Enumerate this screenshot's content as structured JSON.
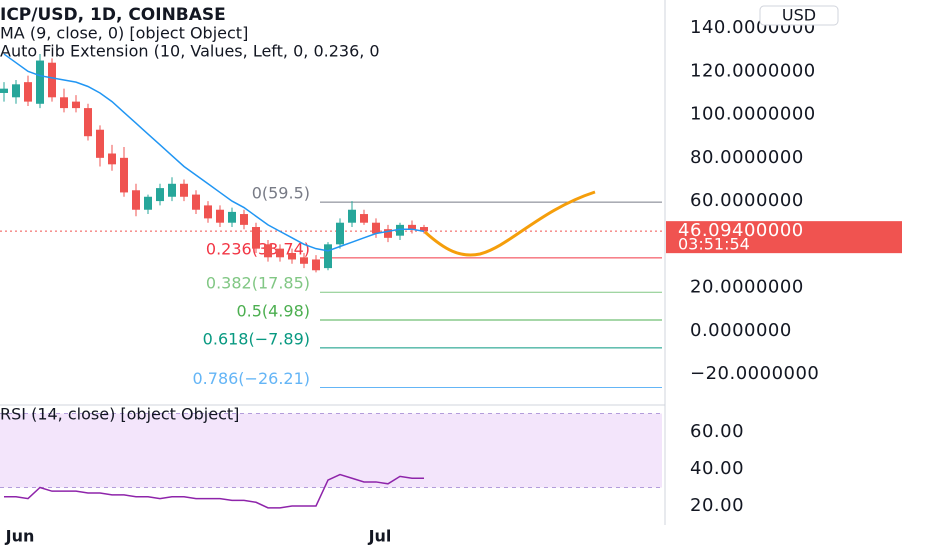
{
  "chart_data": [
    {
      "type": "candlestick",
      "title": "ICP/USD, 1D, COINBASE",
      "currency": "USD",
      "categories": [
        null,
        "Jun",
        null,
        null,
        null,
        null,
        null,
        null,
        null,
        null,
        null,
        null,
        null,
        null,
        null,
        null,
        null,
        null,
        null,
        null,
        null,
        null,
        null,
        null,
        null,
        null,
        null,
        null,
        null,
        null,
        null,
        "Jul",
        null,
        null,
        null,
        null
      ],
      "open": [
        110,
        108,
        115,
        105,
        124,
        108,
        106,
        103,
        93,
        82,
        80,
        65,
        56,
        60,
        62,
        68,
        63,
        58,
        56,
        50,
        54,
        48,
        40,
        38,
        36,
        34,
        33,
        29,
        40,
        50,
        54,
        50,
        47,
        44,
        49,
        48
      ],
      "high": [
        115,
        116,
        118,
        128,
        126,
        112,
        109,
        105,
        95,
        86,
        85,
        68,
        63,
        68,
        71,
        70,
        65,
        60,
        58,
        57,
        56,
        50,
        42,
        40,
        38,
        36,
        35,
        41,
        52,
        60,
        56,
        52,
        49,
        50,
        51,
        49
      ],
      "low": [
        106,
        105,
        104,
        103,
        106,
        101,
        101,
        88,
        76,
        74,
        62,
        53,
        54,
        58,
        60,
        60,
        54,
        50,
        48,
        48,
        47,
        36,
        32,
        32,
        31,
        29,
        27,
        28,
        38,
        48,
        49,
        43,
        41,
        42,
        45,
        45
      ],
      "close": [
        112,
        114,
        106,
        125,
        108,
        103,
        103,
        90,
        80,
        77,
        64,
        56,
        62,
        66,
        68,
        62,
        56,
        52,
        50,
        55,
        49,
        38,
        34,
        34,
        33,
        31,
        28,
        40,
        50,
        56,
        50,
        45,
        43,
        49,
        47,
        46
      ],
      "up_color": "#26a69a",
      "down_color": "#ef5350",
      "series": [
        {
          "name": "MA (9, close, 0) [object Object]",
          "color": "#2196f3",
          "values": [
            128,
            124,
            120,
            118,
            117,
            116,
            115,
            113,
            110,
            106,
            101,
            96,
            91,
            86,
            81,
            76,
            72,
            68,
            64,
            60,
            57,
            53,
            49,
            46,
            43,
            40,
            38,
            37,
            39,
            41,
            43,
            45,
            46,
            47,
            47,
            46
          ]
        }
      ],
      "ylim": [
        -32,
        153
      ],
      "yticks": [
        {
          "value": 140,
          "label": "140.0000000"
        },
        {
          "value": 120,
          "label": "120.0000000"
        },
        {
          "value": 100,
          "label": "100.0000000"
        },
        {
          "value": 80,
          "label": "80.0000000"
        },
        {
          "value": 60,
          "label": "60.0000000"
        },
        {
          "value": 20,
          "label": "20.0000000"
        },
        {
          "value": 0,
          "label": "0.0000000"
        },
        {
          "value": -20,
          "label": "−20.0000000"
        }
      ],
      "last_price": {
        "value": 46.094,
        "label": "46.09400000",
        "countdown": "03:51:54",
        "color": "#f05350"
      },
      "fib": {
        "title": "Auto Fib Extension (10, Values, Left, 0, 0.236, 0",
        "levels": [
          {
            "label": "0(59.5)",
            "value": 59.5,
            "color": "#787b86"
          },
          {
            "label": "0.236(33.74)",
            "value": 33.74,
            "color": "#f23645"
          },
          {
            "label": "0.382(17.85)",
            "value": 17.85,
            "color": "#81c784"
          },
          {
            "label": "0.5(4.98)",
            "value": 4.98,
            "color": "#4caf50"
          },
          {
            "label": "0.618(−7.89)",
            "value": -7.89,
            "color": "#089981"
          },
          {
            "label": "0.786(−26.21)",
            "value": -26.21,
            "color": "#64b5f6"
          }
        ]
      }
    },
    {
      "type": "line",
      "title": "RSI (14, close) [object Object]",
      "color": "#8e24aa",
      "values": [
        25,
        25,
        24,
        30,
        28,
        28,
        28,
        27,
        27,
        26,
        26,
        25,
        25,
        24,
        25,
        25,
        24,
        24,
        24,
        23,
        23,
        22,
        19,
        19,
        20,
        20,
        20,
        34,
        37,
        35,
        33,
        33,
        32,
        36,
        35,
        35
      ],
      "band": [
        30,
        70
      ],
      "band_color": "#f3e5fb",
      "ylim": [
        7,
        73
      ],
      "yticks": [
        {
          "value": 60,
          "label": "60.00"
        },
        {
          "value": 40,
          "label": "40.00"
        },
        {
          "value": 20,
          "label": "20.00"
        }
      ]
    }
  ]
}
